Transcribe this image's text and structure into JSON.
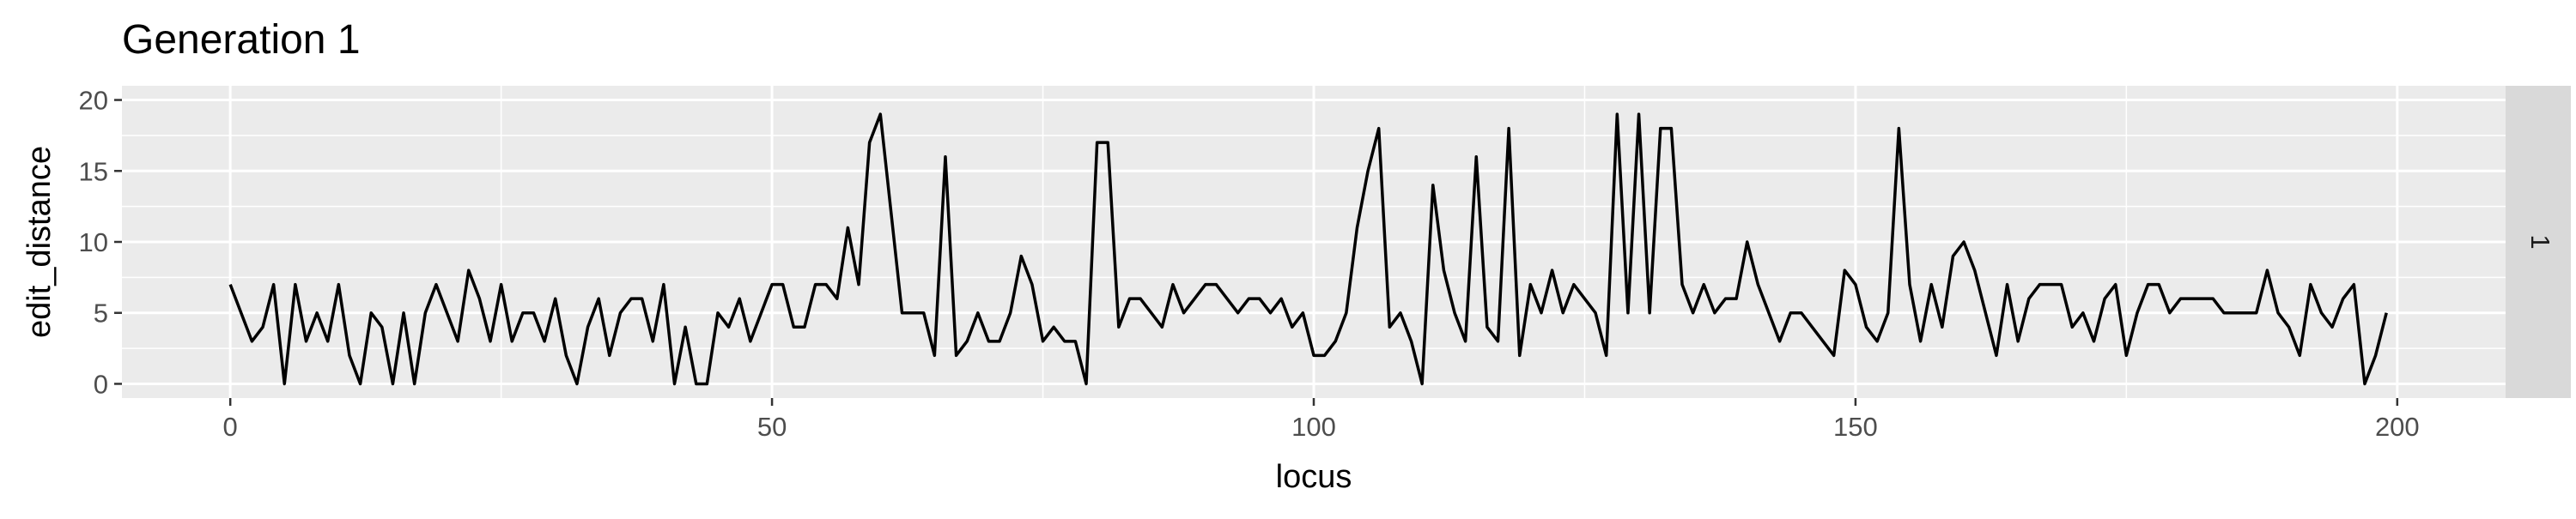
{
  "chart_data": {
    "type": "line",
    "title": "Generation 1",
    "xlabel": "locus",
    "ylabel": "edit_distance",
    "facet_label": "1",
    "xlim": [
      -10,
      210
    ],
    "ylim": [
      -1,
      21
    ],
    "xticks": [
      0,
      50,
      100,
      150,
      200
    ],
    "yticks": [
      0,
      5,
      10,
      15,
      20
    ],
    "grid": true,
    "colors": {
      "panel": "#ebebeb",
      "grid": "#ffffff",
      "line": "#000000",
      "strip": "#d9d9d9"
    },
    "series": [
      {
        "values": [
          7,
          5,
          3,
          4,
          7,
          0,
          7,
          3,
          5,
          3,
          7,
          2,
          0,
          5,
          4,
          0,
          5,
          0,
          5,
          7,
          5,
          3,
          8,
          6,
          3,
          7,
          3,
          5,
          5,
          3,
          6,
          2,
          0,
          4,
          6,
          2,
          5,
          6,
          6,
          3,
          7,
          0,
          4,
          0,
          0,
          5,
          4,
          6,
          3,
          5,
          7,
          7,
          4,
          4,
          7,
          7,
          6,
          11,
          7,
          17,
          19,
          12,
          5,
          5,
          5,
          2,
          16,
          2,
          3,
          5,
          3,
          3,
          5,
          9,
          7,
          3,
          4,
          3,
          3,
          0,
          17,
          17,
          4,
          6,
          6,
          5,
          4,
          7,
          5,
          6,
          7,
          7,
          6,
          5,
          6,
          6,
          5,
          6,
          4,
          5,
          2,
          2,
          3,
          5,
          11,
          15,
          18,
          4,
          5,
          3,
          0,
          14,
          8,
          5,
          3,
          16,
          4,
          3,
          18,
          2,
          7,
          5,
          8,
          5,
          7,
          6,
          5,
          2,
          19,
          5,
          19,
          5,
          18,
          18,
          7,
          5,
          7,
          5,
          6,
          6,
          10,
          7,
          5,
          3,
          5,
          5,
          4,
          3,
          2,
          8,
          7,
          4,
          3,
          5,
          18,
          7,
          3,
          7,
          4,
          9,
          10,
          8,
          5,
          2,
          7,
          3,
          6,
          7,
          7,
          7,
          4,
          5,
          3,
          6,
          7,
          2,
          5,
          7,
          7,
          5,
          6,
          6,
          6,
          6,
          5,
          5,
          5,
          5,
          8,
          5,
          4,
          2,
          7,
          5,
          4,
          6,
          7,
          0,
          2,
          5
        ]
      }
    ]
  }
}
